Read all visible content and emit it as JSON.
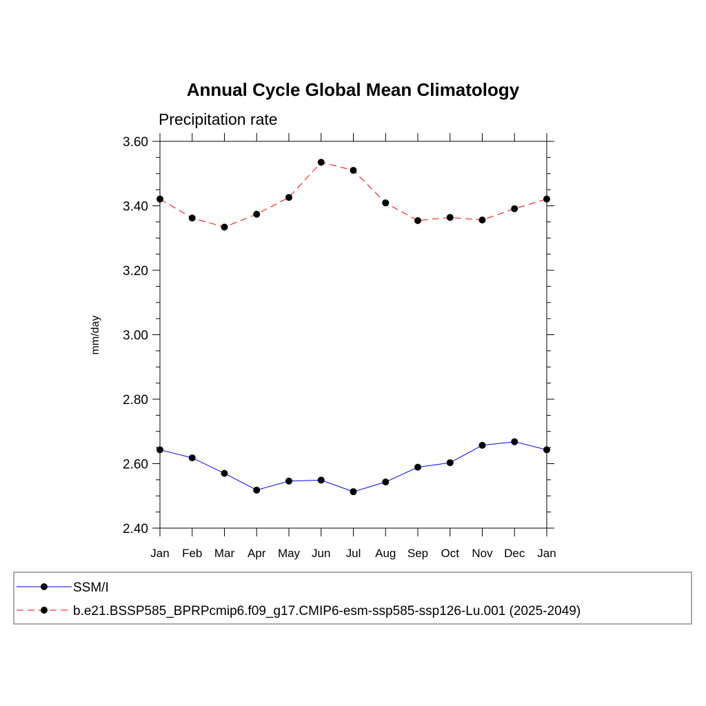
{
  "chart_data": {
    "type": "line",
    "title": "Annual Cycle Global Mean Climatology",
    "subtitle": "Precipitation rate",
    "xlabel": "",
    "ylabel": "mm/day",
    "ylim": [
      2.4,
      3.6
    ],
    "yticks": [
      "2.40",
      "2.60",
      "2.80",
      "3.00",
      "3.20",
      "3.40",
      "3.60"
    ],
    "categories": [
      "Jan",
      "Feb",
      "Mar",
      "Apr",
      "May",
      "Jun",
      "Jul",
      "Aug",
      "Sep",
      "Oct",
      "Nov",
      "Dec",
      "Jan"
    ],
    "series": [
      {
        "name": "SSM/I",
        "color": "#0000ff",
        "dash": "solid",
        "marker": "filled-circle",
        "values": [
          2.643,
          2.618,
          2.57,
          2.518,
          2.546,
          2.549,
          2.513,
          2.543,
          2.589,
          2.603,
          2.657,
          2.668,
          2.643
        ]
      },
      {
        "name": "b.e21.BSSP585_BPRPcmip6.f09_g17.CMIP6-esm-ssp585-ssp126-Lu.001 (2025-2049)",
        "color": "#ff0000",
        "dash": "dashed",
        "marker": "filled-circle",
        "values": [
          3.421,
          3.362,
          3.334,
          3.374,
          3.426,
          3.535,
          3.51,
          3.409,
          3.354,
          3.364,
          3.356,
          3.391,
          3.421
        ]
      }
    ],
    "legend_position": "bottom"
  }
}
